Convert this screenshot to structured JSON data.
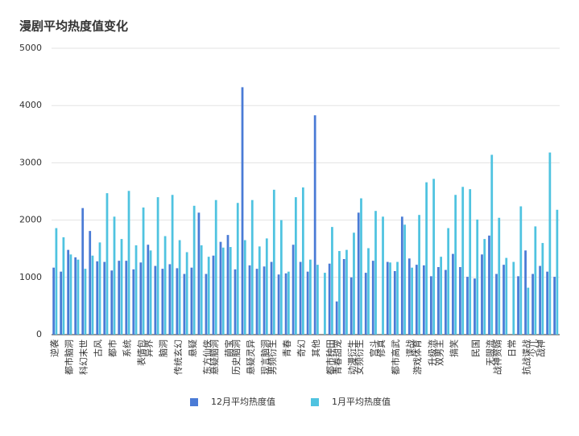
{
  "chart_data": {
    "type": "bar",
    "title": "漫剧平均热度值变化",
    "categories": [
      "逆袭",
      null,
      "都市脑洞",
      null,
      "科幻末世",
      null,
      "古风",
      null,
      "都市",
      null,
      "系统",
      null,
      "表情包",
      "异界",
      null,
      "脑洞",
      null,
      "传统玄幻",
      null,
      "悬疑",
      null,
      "东方仙侠",
      "悬疑脑洞",
      null,
      "萌宝",
      "历史脑洞",
      null,
      "悬疑灵异",
      null,
      "现言脑洞",
      "男频衍生",
      null,
      "青春",
      null,
      "奇幻",
      null,
      "其他",
      null,
      "都市种田",
      "青春甜宠",
      null,
      "动漫衍生",
      "女频衍生",
      null,
      "宫斗",
      "修真",
      null,
      "都市高武",
      null,
      "谍战",
      "游戏体育",
      null,
      "升级流",
      "双男主",
      null,
      "搞笑",
      null,
      null,
      "民国",
      null,
      "无限流",
      "战神赘婿",
      null,
      "日常",
      null,
      "抗战谍战",
      "少儿",
      "战神",
      null,
      null
    ],
    "series": [
      {
        "name": "12月平均热度值",
        "color": "#4a7bd6",
        "values": [
          1170,
          1100,
          1480,
          1350,
          2210,
          1810,
          1280,
          1270,
          1120,
          1290,
          1290,
          1140,
          1260,
          1570,
          1200,
          1150,
          1230,
          1160,
          1060,
          1170,
          2130,
          1060,
          1380,
          1620,
          1740,
          1140,
          4320,
          1210,
          1150,
          1190,
          1270,
          1050,
          1070,
          1570,
          1270,
          1100,
          3830,
          0,
          1240,
          580,
          1320,
          1000,
          2130,
          1080,
          1290,
          0,
          1270,
          1110,
          2060,
          1330,
          1220,
          1210,
          1020,
          1180,
          1130,
          1410,
          1180,
          1010,
          980,
          1400,
          1730,
          1060,
          1220,
          0,
          1020,
          1470,
          1060,
          1200,
          1100,
          1010
        ]
      },
      {
        "name": "1月平均热度值",
        "color": "#4fc3e0",
        "values": [
          1860,
          1700,
          1400,
          1310,
          1150,
          1380,
          1610,
          2470,
          2060,
          1670,
          2510,
          1560,
          2220,
          1470,
          2400,
          1720,
          2440,
          1650,
          1440,
          2250,
          1560,
          1360,
          2350,
          1520,
          1530,
          2300,
          1650,
          2350,
          1540,
          1680,
          2530,
          2000,
          1100,
          2400,
          2570,
          1310,
          1220,
          1080,
          1880,
          1460,
          1480,
          1780,
          2380,
          1510,
          2160,
          2060,
          1260,
          1270,
          1920,
          1170,
          2090,
          2660,
          2720,
          1360,
          1860,
          2440,
          2580,
          2540,
          2010,
          1670,
          3140,
          2040,
          1340,
          1270,
          2240,
          820,
          1890,
          1600,
          3180,
          2180
        ]
      }
    ],
    "ylim": [
      0,
      5000
    ],
    "yticks": [
      0,
      1000,
      2000,
      3000,
      4000,
      5000
    ],
    "grid": true
  }
}
